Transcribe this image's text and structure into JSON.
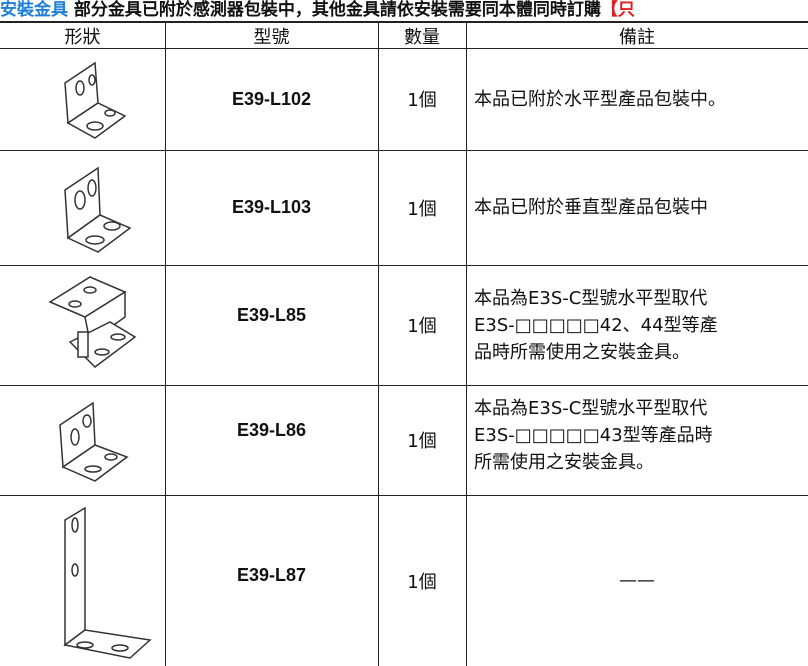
{
  "header": {
    "label": "安裝金具",
    "text": "部分金具已附於感測器包裝中，其他金具請依安裝需要同本體同時訂購",
    "note": "【只"
  },
  "table": {
    "columns": [
      "形狀",
      "型號",
      "數量",
      "備註"
    ],
    "rows": [
      {
        "model": "E39-L102",
        "qty": "1個",
        "note": [
          "本品已附於水平型產品包裝中。"
        ]
      },
      {
        "model": "E39-L103",
        "qty": "1個",
        "note": [
          "本品已附於垂直型產品包裝中"
        ]
      },
      {
        "model": "E39-L85",
        "qty": "1個",
        "note": [
          "本品為E3S-C型號水平型取代",
          "E3S-□□□□□42、44型等產",
          "品時所需使用之安裝金具。"
        ]
      },
      {
        "model": "E39-L86",
        "qty": "1個",
        "note": [
          "本品為E3S-C型號水平型取代",
          "E3S-□□□□□43型等產品時",
          "所需使用之安裝金具。"
        ]
      },
      {
        "model": "E39-L87",
        "qty": "1個",
        "note": [
          "——"
        ]
      }
    ]
  }
}
